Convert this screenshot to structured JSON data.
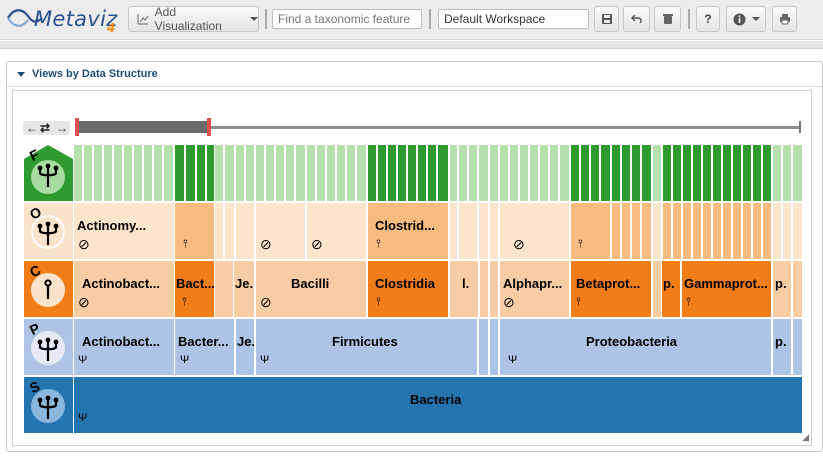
{
  "app": {
    "logo_text": "Metaviz",
    "logo_version": "4"
  },
  "toolbar": {
    "add_visualization_label": "Add Visualization",
    "search_placeholder": "Find a taxonomic feature",
    "workspace_name": "Default Workspace"
  },
  "panel": {
    "title": "Views by Data Structure"
  },
  "icicle": {
    "levels": [
      {
        "letter": "F",
        "color": "#2e9b2e",
        "icon": "tree-icon"
      },
      {
        "letter": "O",
        "color": "#f7cfa5",
        "icon": "tree-icon"
      },
      {
        "letter": "C",
        "color": "#f07d18",
        "icon": "leaf-node-icon"
      },
      {
        "letter": "P",
        "color": "#b8c9e6",
        "icon": "tree-icon"
      },
      {
        "letter": "S",
        "color": "#2474b0",
        "icon": "tree-icon"
      }
    ],
    "order_labels": [
      "Actinomy...",
      "Clostrid..."
    ],
    "class_labels": [
      "Actinobact...",
      "Bact...",
      "Je.",
      "Bacilli",
      "Clostridia",
      "l.",
      "Alphapr...",
      "Betaprot...",
      "p.",
      "Gammaprot...",
      "p."
    ],
    "phylum_labels": [
      "Actinobact...",
      "Bacter...",
      "Je.",
      "Firmicutes",
      "Proteobacteria",
      "p."
    ],
    "superkingdom_label": "Bacteria"
  },
  "colors": {
    "family_bright": "#2e9b2e",
    "family_light": "#b5e0ad",
    "order_light": "#fde4cc",
    "order_mid": "#f7bb80",
    "class_mid": "#f9cda3",
    "class_dark": "#f07d18",
    "phylum": "#aec4e6",
    "superkingdom": "#2474b0"
  }
}
